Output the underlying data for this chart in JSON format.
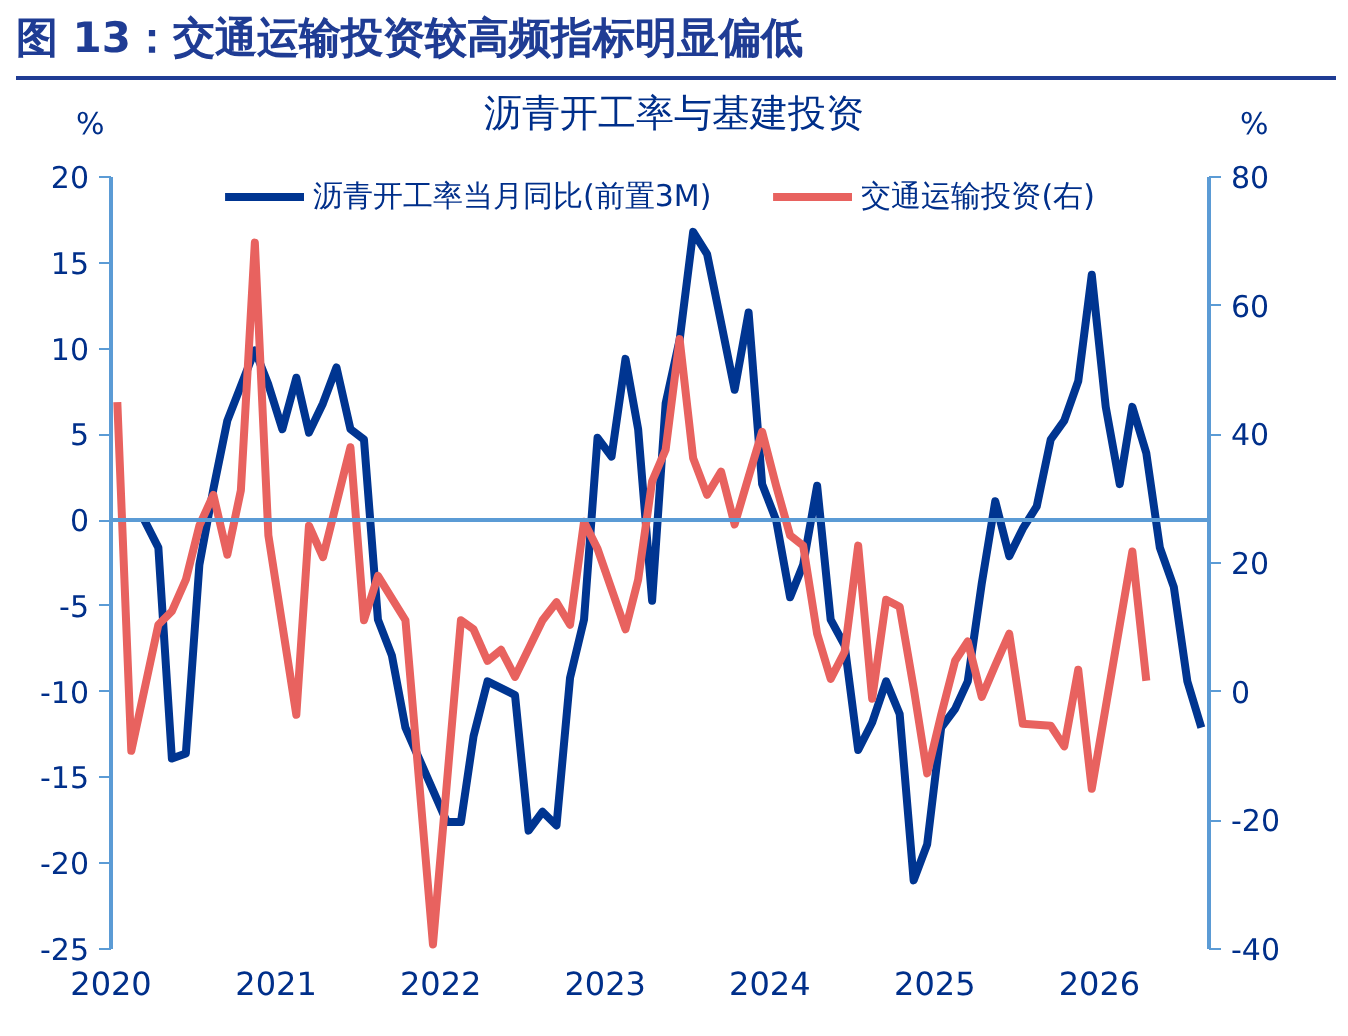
{
  "chart_data": {
    "type": "line",
    "title": "图 13：交通运输投资较高频指标明显偏低",
    "subtitle": "沥青开工率与基建投资",
    "ylabel": "%",
    "y2label": "%",
    "series": [
      {
        "name": "沥青开工率当月同比(前置3M)",
        "color": "#003591",
        "x": [
          "2020-03-15",
          "2020-04-15",
          "2020-05-15",
          "2020-06-15",
          "2020-07-15",
          "2020-08-15",
          "2020-09-15",
          "2020-11-15",
          "2020-12-15",
          "2021-01-15",
          "2021-02-15",
          "2021-03-15",
          "2021-04-15",
          "2021-05-15",
          "2021-06-15",
          "2021-07-15",
          "2021-08-15",
          "2021-09-15",
          "2021-10-15",
          "2022-01-15",
          "2022-02-15",
          "2022-03-15",
          "2022-04-15",
          "2022-06-15",
          "2022-07-15",
          "2022-08-15",
          "2022-09-15",
          "2022-10-15",
          "2022-11-15",
          "2022-12-15",
          "2023-01-15",
          "2023-02-15",
          "2023-03-15",
          "2023-04-15",
          "2023-05-15",
          "2023-06-15",
          "2023-07-15",
          "2023-08-15",
          "2023-09-15",
          "2023-10-15",
          "2023-11-15",
          "2023-12-15",
          "2024-01-15",
          "2024-02-15",
          "2024-03-15",
          "2024-04-15",
          "2024-05-15",
          "2024-06-15",
          "2024-07-15",
          "2024-08-15",
          "2024-09-15",
          "2024-10-15",
          "2024-11-15",
          "2024-12-15",
          "2025-01-15",
          "2025-02-15",
          "2025-03-15",
          "2025-04-15",
          "2025-05-15",
          "2025-06-15",
          "2025-07-15",
          "2025-08-15",
          "2025-09-15",
          "2025-10-15",
          "2025-11-15",
          "2025-12-15",
          "2026-01-15",
          "2026-02-15",
          "2026-03-15",
          "2026-04-15",
          "2026-05-15",
          "2026-06-15",
          "2026-07-15",
          "2026-08-15"
        ],
        "values": [
          0,
          -1.6,
          -13.9,
          -13.6,
          -2.6,
          1.8,
          5.8,
          9.9,
          7.9,
          5.3,
          8.3,
          5.1,
          6.8,
          8.9,
          5.3,
          4.7,
          -5.8,
          -7.9,
          -12.1,
          -17.6,
          -17.6,
          -12.6,
          -9.4,
          -10.2,
          -18.1,
          -17,
          -17.8,
          -9.2,
          -5.8,
          4.8,
          3.7,
          9.4,
          5.3,
          -4.7,
          6.8,
          10.5,
          16.8,
          15.5,
          11.5,
          7.6,
          12.1,
          2.1,
          0,
          -4.5,
          -2.6,
          2,
          -5.8,
          -7.3,
          -13.4,
          -11.8,
          -9.4,
          -11.3,
          -21,
          -18.9,
          -12.1,
          -11,
          -9.4,
          -3.7,
          1.1,
          -2.1,
          -0.5,
          0.8,
          4.7,
          5.8,
          8.1,
          14.3,
          6.6,
          2.1,
          6.6,
          3.9,
          -1.6,
          -3.9,
          -9.4,
          -12.1
        ]
      },
      {
        "name": "交通运输投资(右)",
        "color": "#e8625f",
        "axis": "y2",
        "x": [
          "2020-01-15",
          "2020-02-15",
          "2020-04-15",
          "2020-05-15",
          "2020-06-15",
          "2020-07-15",
          "2020-08-15",
          "2020-09-15",
          "2020-10-15",
          "2020-11-15",
          "2020-12-15",
          "2021-02-15",
          "2021-03-15",
          "2021-04-15",
          "2021-06-15",
          "2021-07-15",
          "2021-08-15",
          "2021-10-15",
          "2021-12-15",
          "2022-02-15",
          "2022-03-15",
          "2022-04-15",
          "2022-05-15",
          "2022-06-15",
          "2022-08-15",
          "2022-09-15",
          "2022-10-15",
          "2022-11-15",
          "2022-12-15",
          "2023-02-15",
          "2023-03-15",
          "2023-04-15",
          "2023-05-15",
          "2023-06-15",
          "2023-07-15",
          "2023-08-15",
          "2023-09-15",
          "2023-10-15",
          "2023-11-15",
          "2023-12-15",
          "2024-01-15",
          "2024-02-15",
          "2024-03-15",
          "2024-04-15",
          "2024-05-15",
          "2024-06-15",
          "2024-07-15",
          "2024-08-15",
          "2024-09-15",
          "2024-10-15",
          "2024-11-15",
          "2024-12-15",
          "2025-01-15",
          "2025-02-15",
          "2025-03-15",
          "2025-04-15",
          "2025-05-15",
          "2025-06-15",
          "2025-07-15",
          "2025-09-15",
          "2025-10-15",
          "2025-11-15",
          "2025-12-15",
          "2026-03-15",
          "2026-04-15"
        ],
        "values": [
          45,
          -9.2,
          10.4,
          12.5,
          17.4,
          25.8,
          30.6,
          21.3,
          31.3,
          69.8,
          24.3,
          -3.6,
          25.8,
          20.9,
          38,
          11.1,
          18,
          11.1,
          -39.3,
          11.1,
          9.7,
          4.8,
          6.5,
          2.3,
          11.1,
          13.9,
          10.4,
          26.4,
          22.2,
          9.7,
          17.4,
          32.7,
          37.6,
          54.8,
          36.3,
          30.6,
          34.2,
          26,
          33.4,
          40.4,
          32,
          24.3,
          22.7,
          9,
          2,
          6.2,
          22.7,
          -1.1,
          14.3,
          13.2,
          0.6,
          -12.7,
          -3.6,
          4.8,
          7.8,
          -0.8,
          4.1,
          9,
          -5,
          -5.3,
          -8.5,
          3.4,
          -15.1,
          21.8,
          1.7
        ]
      }
    ],
    "xlim": [
      "2020-01",
      "2026-09"
    ],
    "xticks": [
      {
        "value": "2020",
        "label": "2020"
      },
      {
        "value": "2021",
        "label": "2021"
      },
      {
        "value": "2022",
        "label": "2022"
      },
      {
        "value": "2023",
        "label": "2023"
      },
      {
        "value": "2024",
        "label": "2024"
      },
      {
        "value": "2025",
        "label": "2025"
      },
      {
        "value": "2026",
        "label": "2026"
      }
    ],
    "ylim": [
      -25,
      20
    ],
    "yticks": [
      -25,
      -20,
      -15,
      -10,
      -5,
      0,
      5,
      10,
      15,
      20
    ],
    "y2lim": [
      -40,
      80
    ],
    "y2ticks": [
      -40,
      -20,
      0,
      20,
      40,
      60,
      80
    ],
    "ref_lines": [
      {
        "axis": "y",
        "value": 0,
        "color": "#5b9bd5"
      }
    ],
    "grid": false,
    "legend": "top",
    "line_style": "solid",
    "marker": "none"
  }
}
